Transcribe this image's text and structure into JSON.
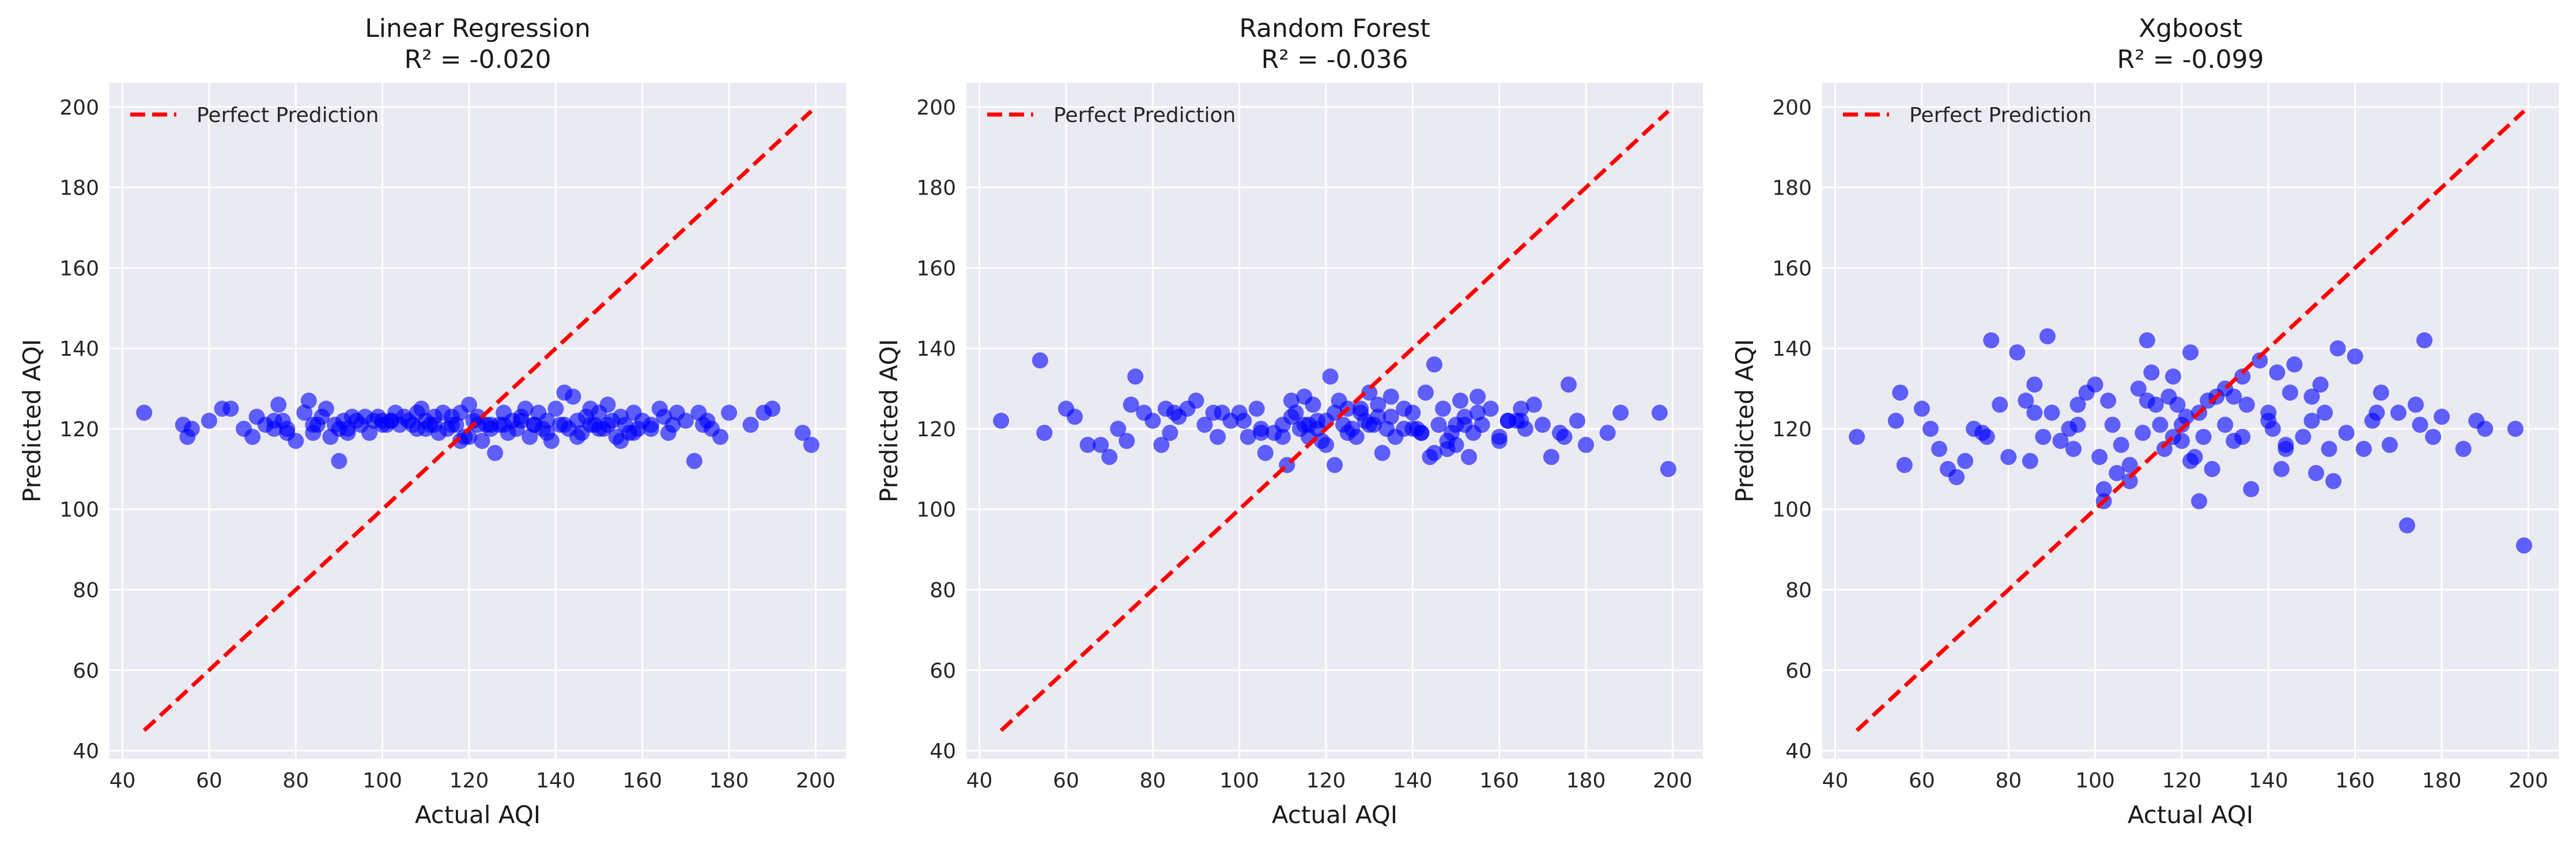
{
  "chart_data": [
    {
      "type": "scatter",
      "title_line1": "Linear Regression",
      "title_line2": "R² = -0.020",
      "xlabel": "Actual AQI",
      "ylabel": "Predicted AQI",
      "xlim": [
        37,
        207
      ],
      "ylim": [
        38,
        206
      ],
      "xticks": [
        40,
        60,
        80,
        100,
        120,
        140,
        160,
        180,
        200
      ],
      "yticks": [
        40,
        60,
        80,
        100,
        120,
        140,
        160,
        180,
        200
      ],
      "legend": {
        "label": "Perfect Prediction",
        "position": "upper-left"
      },
      "reference_line": {
        "x": [
          45,
          199
        ],
        "y": [
          45,
          199
        ],
        "color": "#ff0000",
        "style": "dashed"
      },
      "point_color": "#0000ff",
      "grid": true,
      "series": [
        {
          "x": [
            45,
            54,
            55,
            56,
            60,
            63,
            65,
            68,
            70,
            71,
            73,
            75,
            76,
            77,
            78,
            80,
            82,
            83,
            84,
            85,
            86,
            87,
            88,
            89,
            90,
            91,
            92,
            93,
            95,
            96,
            97,
            98,
            99,
            100,
            101,
            102,
            103,
            104,
            105,
            106,
            107,
            108,
            109,
            110,
            111,
            112,
            113,
            114,
            115,
            116,
            117,
            118,
            119,
            120,
            121,
            122,
            123,
            124,
            125,
            126,
            127,
            128,
            129,
            130,
            131,
            132,
            133,
            134,
            135,
            136,
            137,
            138,
            139,
            140,
            141,
            142,
            143,
            144,
            145,
            146,
            147,
            148,
            149,
            150,
            151,
            152,
            153,
            154,
            155,
            156,
            157,
            158,
            159,
            160,
            162,
            164,
            165,
            166,
            167,
            168,
            170,
            172,
            173,
            174,
            175,
            176,
            178,
            180,
            185,
            188,
            190,
            197,
            199,
            84,
            90,
            100,
            110,
            120,
            125,
            135,
            145,
            150,
            155,
            92,
            102,
            112,
            118,
            128,
            138,
            148,
            158,
            75,
            78,
            108,
            116,
            122,
            132,
            142,
            152,
            162,
            94
          ],
          "y": [
            124,
            121,
            118,
            120,
            122,
            125,
            125,
            120,
            118,
            123,
            121,
            120,
            126,
            122,
            119,
            117,
            124,
            127,
            119,
            121,
            123,
            125,
            118,
            121,
            112,
            122,
            120,
            123,
            121,
            123,
            119,
            122,
            123,
            122,
            121,
            122,
            124,
            121,
            123,
            122,
            121,
            120,
            125,
            122,
            121,
            123,
            119,
            124,
            120,
            123,
            121,
            124,
            118,
            126,
            122,
            123,
            117,
            121,
            120,
            114,
            121,
            124,
            119,
            122,
            120,
            123,
            125,
            118,
            121,
            124,
            120,
            122,
            117,
            125,
            121,
            129,
            120,
            128,
            122,
            119,
            123,
            125,
            121,
            124,
            120,
            126,
            122,
            118,
            123,
            121,
            119,
            124,
            120,
            122,
            121,
            125,
            123,
            119,
            121,
            124,
            122,
            112,
            124,
            121,
            122,
            120,
            118,
            124,
            121,
            124,
            125,
            119,
            116,
            121,
            120,
            121,
            120,
            118,
            121,
            121,
            118,
            120,
            117,
            119,
            122,
            121,
            117,
            121,
            119,
            121,
            119,
            122,
            120,
            124,
            121,
            121,
            122,
            121,
            121,
            120,
            122
          ]
        }
      ]
    },
    {
      "type": "scatter",
      "title_line1": "Random Forest",
      "title_line2": "R² = -0.036",
      "xlabel": "Actual AQI",
      "ylabel": "Predicted AQI",
      "xlim": [
        37,
        207
      ],
      "ylim": [
        38,
        206
      ],
      "xticks": [
        40,
        60,
        80,
        100,
        120,
        140,
        160,
        180,
        200
      ],
      "yticks": [
        40,
        60,
        80,
        100,
        120,
        140,
        160,
        180,
        200
      ],
      "legend": {
        "label": "Perfect Prediction",
        "position": "upper-left"
      },
      "reference_line": {
        "x": [
          45,
          199
        ],
        "y": [
          45,
          199
        ],
        "color": "#ff0000",
        "style": "dashed"
      },
      "point_color": "#0000ff",
      "grid": true,
      "series": [
        {
          "x": [
            45,
            54,
            55,
            60,
            62,
            65,
            68,
            70,
            72,
            74,
            75,
            76,
            78,
            80,
            82,
            83,
            84,
            85,
            86,
            88,
            90,
            92,
            94,
            95,
            96,
            98,
            100,
            101,
            102,
            104,
            105,
            106,
            108,
            110,
            111,
            112,
            113,
            114,
            115,
            116,
            117,
            118,
            119,
            120,
            121,
            122,
            123,
            124,
            125,
            126,
            127,
            128,
            129,
            130,
            131,
            132,
            133,
            134,
            135,
            136,
            138,
            140,
            141,
            142,
            143,
            144,
            145,
            146,
            147,
            148,
            149,
            150,
            151,
            152,
            153,
            154,
            155,
            156,
            158,
            160,
            162,
            164,
            165,
            166,
            168,
            170,
            172,
            174,
            175,
            176,
            178,
            180,
            185,
            188,
            197,
            199,
            110,
            112,
            118,
            125,
            130,
            135,
            140,
            145,
            150,
            155,
            160,
            165,
            120,
            128,
            138,
            148,
            116,
            122,
            132,
            142,
            152,
            162,
            105,
            115
          ],
          "y": [
            122,
            137,
            119,
            125,
            123,
            116,
            116,
            113,
            120,
            117,
            126,
            133,
            124,
            122,
            116,
            125,
            119,
            124,
            123,
            125,
            127,
            121,
            124,
            118,
            124,
            122,
            124,
            122,
            118,
            125,
            120,
            114,
            119,
            121,
            111,
            127,
            124,
            120,
            128,
            118,
            126,
            120,
            117,
            122,
            133,
            111,
            127,
            121,
            125,
            120,
            118,
            124,
            122,
            129,
            121,
            126,
            114,
            120,
            123,
            118,
            125,
            124,
            120,
            119,
            129,
            113,
            136,
            121,
            125,
            115,
            119,
            121,
            127,
            123,
            113,
            119,
            128,
            121,
            125,
            118,
            122,
            122,
            125,
            120,
            126,
            121,
            113,
            119,
            118,
            131,
            122,
            116,
            119,
            124,
            124,
            110,
            118,
            123,
            122,
            119,
            121,
            128,
            120,
            114,
            116,
            124,
            117,
            122,
            116,
            125,
            120,
            117,
            121,
            124,
            123,
            119,
            121,
            122,
            119,
            121
          ]
        }
      ]
    },
    {
      "type": "scatter",
      "title_line1": "Xgboost",
      "title_line2": "R² = -0.099",
      "xlabel": "Actual AQI",
      "ylabel": "Predicted AQI",
      "xlim": [
        37,
        207
      ],
      "ylim": [
        38,
        206
      ],
      "xticks": [
        40,
        60,
        80,
        100,
        120,
        140,
        160,
        180,
        200
      ],
      "yticks": [
        40,
        60,
        80,
        100,
        120,
        140,
        160,
        180,
        200
      ],
      "legend": {
        "label": "Perfect Prediction",
        "position": "upper-left"
      },
      "reference_line": {
        "x": [
          45,
          199
        ],
        "y": [
          45,
          199
        ],
        "color": "#ff0000",
        "style": "dashed"
      },
      "point_color": "#0000ff",
      "grid": true,
      "series": [
        {
          "x": [
            45,
            54,
            55,
            56,
            60,
            62,
            64,
            66,
            68,
            70,
            72,
            74,
            75,
            76,
            78,
            80,
            82,
            84,
            85,
            86,
            88,
            89,
            90,
            92,
            94,
            95,
            96,
            98,
            100,
            101,
            102,
            103,
            104,
            105,
            106,
            108,
            110,
            111,
            112,
            113,
            114,
            115,
            116,
            117,
            118,
            119,
            120,
            121,
            122,
            123,
            124,
            125,
            126,
            127,
            128,
            130,
            132,
            134,
            135,
            136,
            138,
            140,
            141,
            142,
            143,
            144,
            145,
            146,
            148,
            150,
            151,
            152,
            153,
            154,
            155,
            156,
            158,
            160,
            162,
            164,
            165,
            166,
            168,
            170,
            172,
            174,
            175,
            176,
            178,
            180,
            185,
            188,
            190,
            197,
            199,
            108,
            112,
            120,
            130,
            140,
            150,
            102,
            118,
            124,
            134,
            144,
            86,
            96,
            122,
            132
          ],
          "y": [
            118,
            122,
            129,
            111,
            125,
            120,
            115,
            110,
            108,
            112,
            120,
            119,
            118,
            142,
            126,
            113,
            139,
            127,
            112,
            131,
            118,
            143,
            124,
            117,
            120,
            115,
            126,
            129,
            131,
            113,
            102,
            127,
            121,
            109,
            116,
            107,
            130,
            119,
            142,
            134,
            126,
            121,
            115,
            128,
            118,
            126,
            121,
            123,
            139,
            113,
            102,
            118,
            127,
            110,
            128,
            121,
            117,
            133,
            126,
            105,
            137,
            122,
            120,
            134,
            110,
            115,
            129,
            136,
            118,
            122,
            109,
            131,
            124,
            115,
            107,
            140,
            119,
            138,
            115,
            122,
            124,
            129,
            116,
            124,
            96,
            126,
            121,
            142,
            118,
            123,
            115,
            122,
            120,
            120,
            91,
            111,
            127,
            117,
            130,
            124,
            128,
            105,
            133,
            124,
            118,
            116,
            124,
            121,
            112,
            128
          ]
        }
      ]
    }
  ]
}
